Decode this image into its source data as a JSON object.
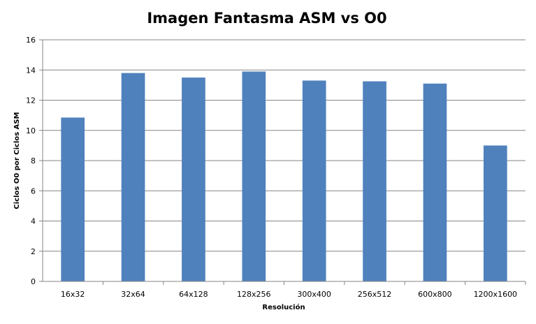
{
  "chart_data": {
    "type": "bar",
    "title": "Imagen Fantasma ASM vs O0",
    "xlabel": "Resolución",
    "ylabel": "Ciclos O0 por Ciclos ASM",
    "categories": [
      "16x32",
      "32x64",
      "64x128",
      "128x256",
      "300x400",
      "256x512",
      "600x800",
      "1200x1600"
    ],
    "values": [
      10.85,
      13.8,
      13.5,
      13.9,
      13.3,
      13.25,
      13.1,
      9.0
    ],
    "ylim": [
      0,
      16
    ],
    "yticks": [
      "0",
      "2",
      "4",
      "6",
      "8",
      "10",
      "12",
      "14",
      "16"
    ],
    "grid": true,
    "legend": "none",
    "bar_color": "#4f81bd"
  }
}
